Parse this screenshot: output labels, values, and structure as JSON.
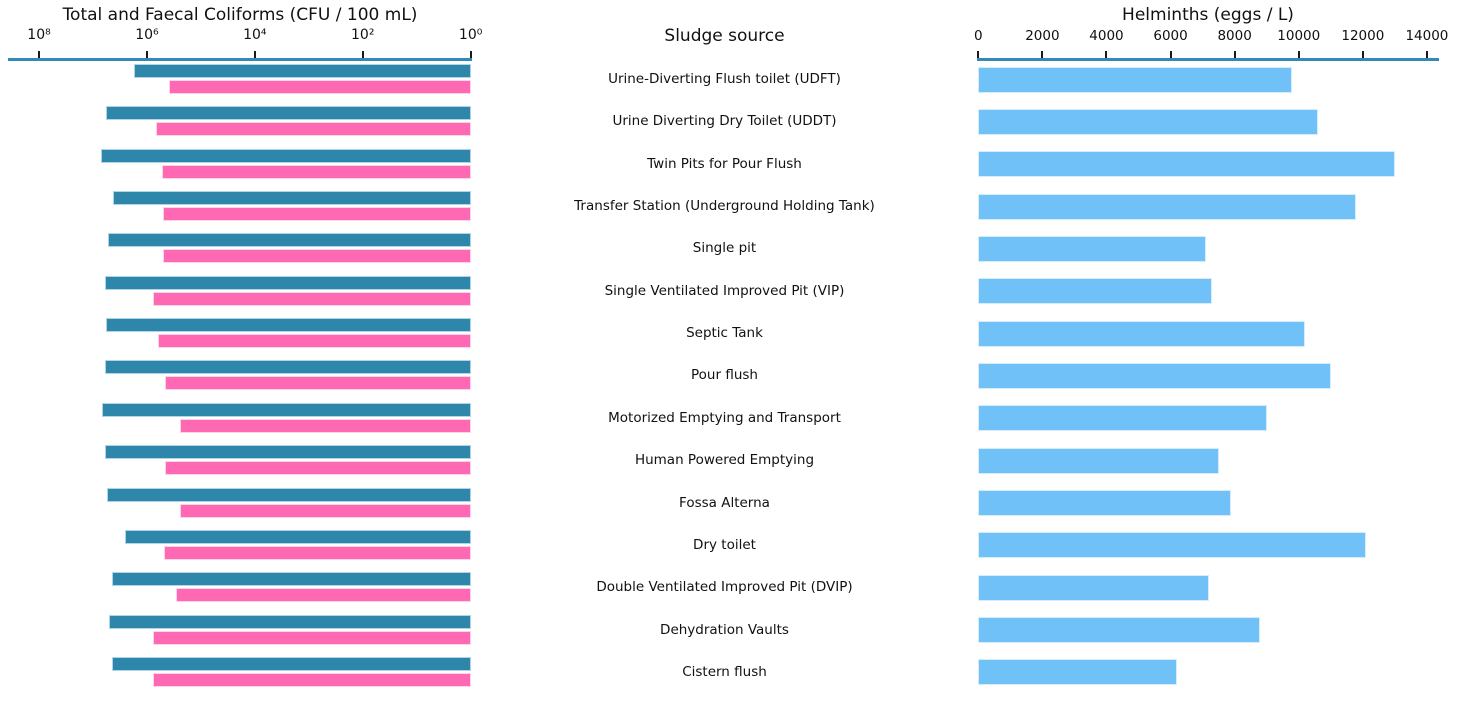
{
  "center": {
    "title": "Sludge source"
  },
  "colors": {
    "total_coliforms_bar": "#2e86ab",
    "faecal_coliforms_bar": "#ff69b4",
    "helminths_bar": "#70c1f7",
    "axis_line": "#3189b8",
    "tick_mark": "#1a1a1a",
    "text": "#111111"
  },
  "chart_data": [
    {
      "type": "bar",
      "orientation": "horizontal",
      "title": "Total and Faecal Coliforms (CFU / 100 mL)",
      "axis_position": "top",
      "scale": "log10, reversed (high values on left, bars anchored at 10^0 on right)",
      "tick_labels": [
        "10⁸",
        "10⁶",
        "10⁴",
        "10²",
        "10⁰"
      ],
      "tick_exponents": [
        8,
        6,
        4,
        2,
        0
      ],
      "grid": false,
      "legend": "none",
      "categories": [
        "Urine-Diverting Flush toilet (UDFT)",
        "Urine Diverting Dry Toilet (UDDT)",
        "Twin Pits for Pour Flush",
        "Transfer Station (Underground Holding Tank)",
        "Single pit",
        "Single Ventilated Improved Pit (VIP)",
        "Septic Tank",
        "Pour flush",
        "Motorized Emptying and Transport",
        "Human Powered Emptying",
        "Fossa Alterna",
        "Dry toilet",
        "Double Ventilated Improved Pit (DVIP)",
        "Dehydration Vaults",
        "Cistern flush"
      ],
      "series": [
        {
          "name": "Total coliforms",
          "color": "#2e86ab",
          "values": [
            1700000,
            5700000,
            7000000,
            4300000,
            5300000,
            6000000,
            5700000,
            6000000,
            6700000,
            6000000,
            5400000,
            2500000,
            4400000,
            5000000,
            4400000
          ]
        },
        {
          "name": "Faecal coliforms",
          "color": "#ff69b4",
          "values": [
            390000,
            680000,
            530000,
            510000,
            510000,
            760000,
            620000,
            470000,
            240000,
            470000,
            240000,
            480000,
            290000,
            780000,
            760000
          ]
        }
      ]
    },
    {
      "type": "bar",
      "orientation": "horizontal",
      "title": "Helminths (eggs / L)",
      "axis_position": "top",
      "scale": "linear",
      "xlim": [
        0,
        14350
      ],
      "tick_values": [
        0,
        2000,
        4000,
        6000,
        8000,
        10000,
        12000,
        14000
      ],
      "grid": false,
      "legend": "none",
      "categories": [
        "Urine-Diverting Flush toilet (UDFT)",
        "Urine Diverting Dry Toilet (UDDT)",
        "Twin Pits for Pour Flush",
        "Transfer Station (Underground Holding Tank)",
        "Single pit",
        "Single Ventilated Improved Pit (VIP)",
        "Septic Tank",
        "Pour flush",
        "Motorized Emptying and Transport",
        "Human Powered Emptying",
        "Fossa Alterna",
        "Dry toilet",
        "Double Ventilated Improved Pit (DVIP)",
        "Dehydration Vaults",
        "Cistern flush"
      ],
      "series": [
        {
          "name": "Helminth eggs",
          "color": "#70c1f7",
          "values": [
            9800,
            10600,
            13000,
            11800,
            7100,
            7300,
            10200,
            11000,
            9000,
            7500,
            7900,
            12100,
            7200,
            8800,
            6200
          ]
        }
      ]
    }
  ]
}
